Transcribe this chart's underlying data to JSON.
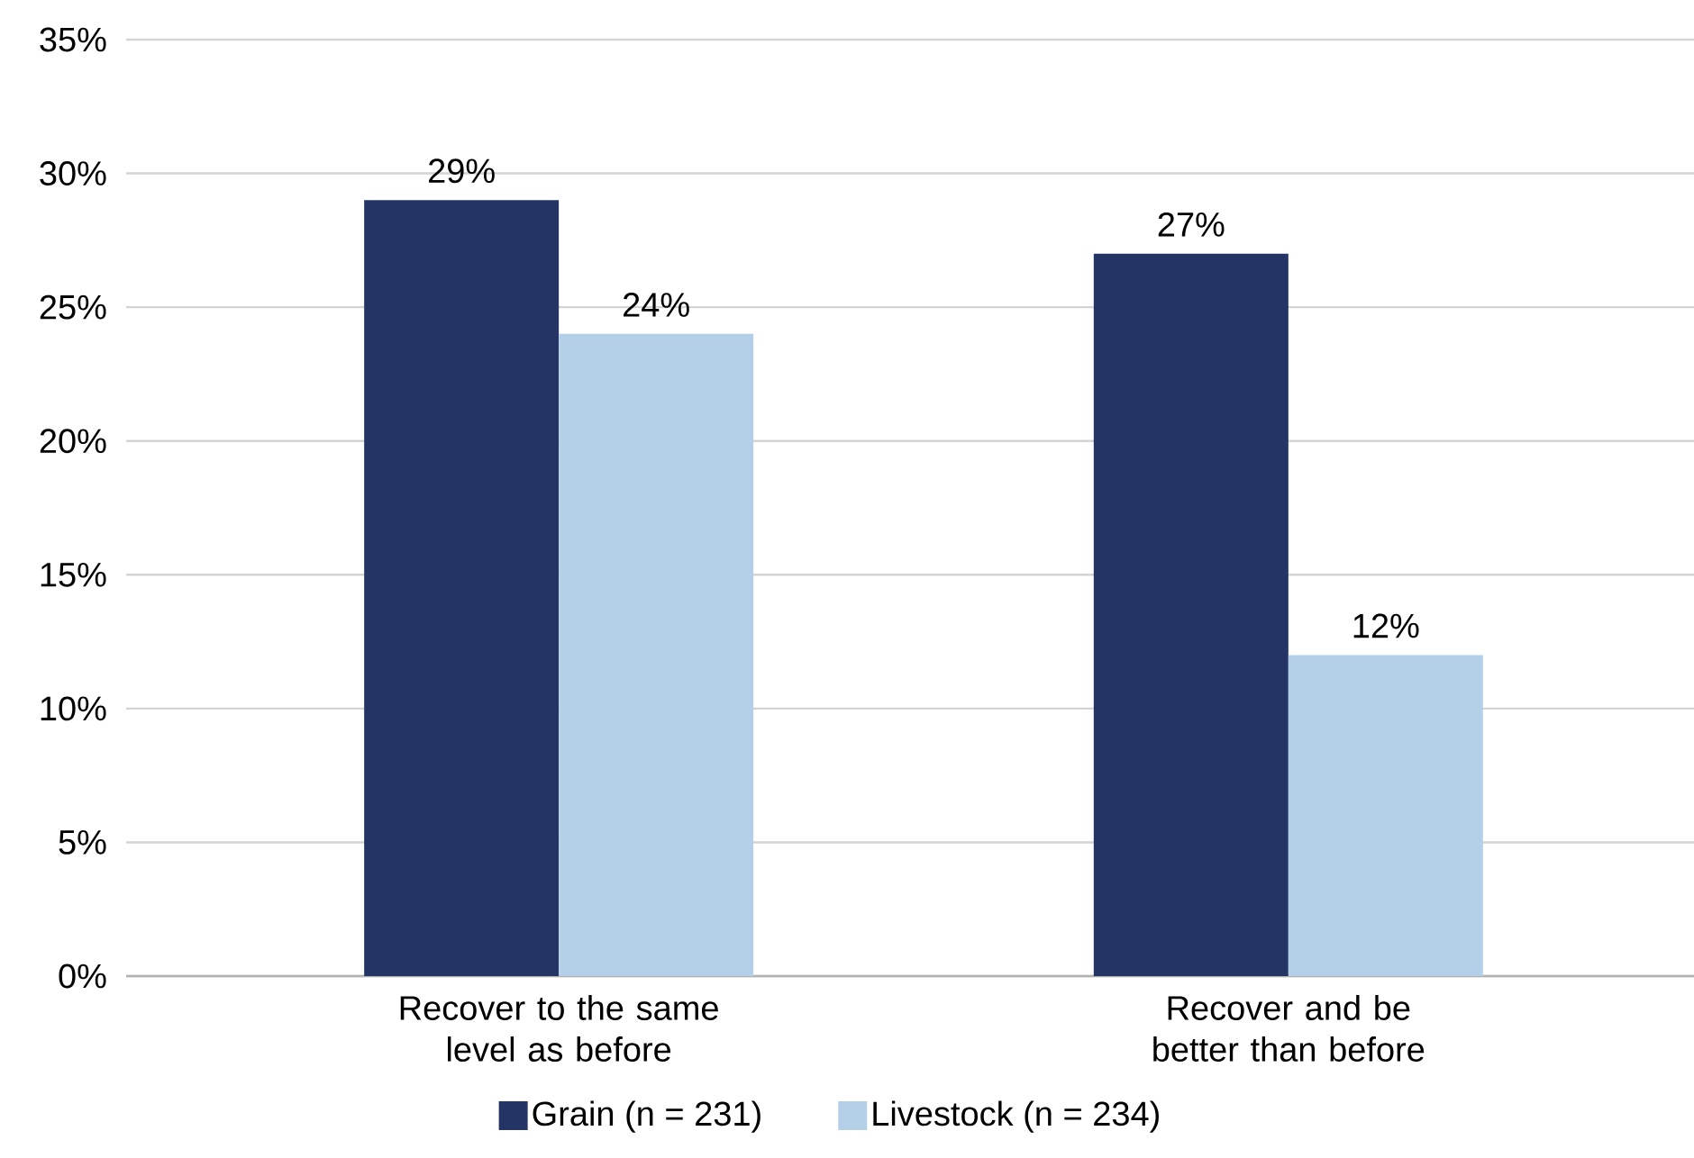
{
  "chart_data": {
    "type": "bar",
    "categories": [
      "Recover to the same level as before",
      "Recover and be better than before"
    ],
    "series": [
      {
        "name": "Grain (n = 231)",
        "color": "#243465",
        "values": [
          29,
          27
        ],
        "value_labels": [
          "29%",
          "27%"
        ]
      },
      {
        "name": "Livestock (n = 234)",
        "color": "#b4d0e8",
        "values": [
          24,
          12
        ],
        "value_labels": [
          "24%",
          "12%"
        ]
      }
    ],
    "ylim": [
      0,
      35
    ],
    "yticks": [
      {
        "value": 0,
        "label": "0%"
      },
      {
        "value": 5,
        "label": "5%"
      },
      {
        "value": 10,
        "label": "10%"
      },
      {
        "value": 15,
        "label": "15%"
      },
      {
        "value": 20,
        "label": "20%"
      },
      {
        "value": 25,
        "label": "25%"
      },
      {
        "value": 30,
        "label": "30%"
      },
      {
        "value": 35,
        "label": "35%"
      }
    ],
    "grid": "y",
    "legend": "bottom"
  }
}
